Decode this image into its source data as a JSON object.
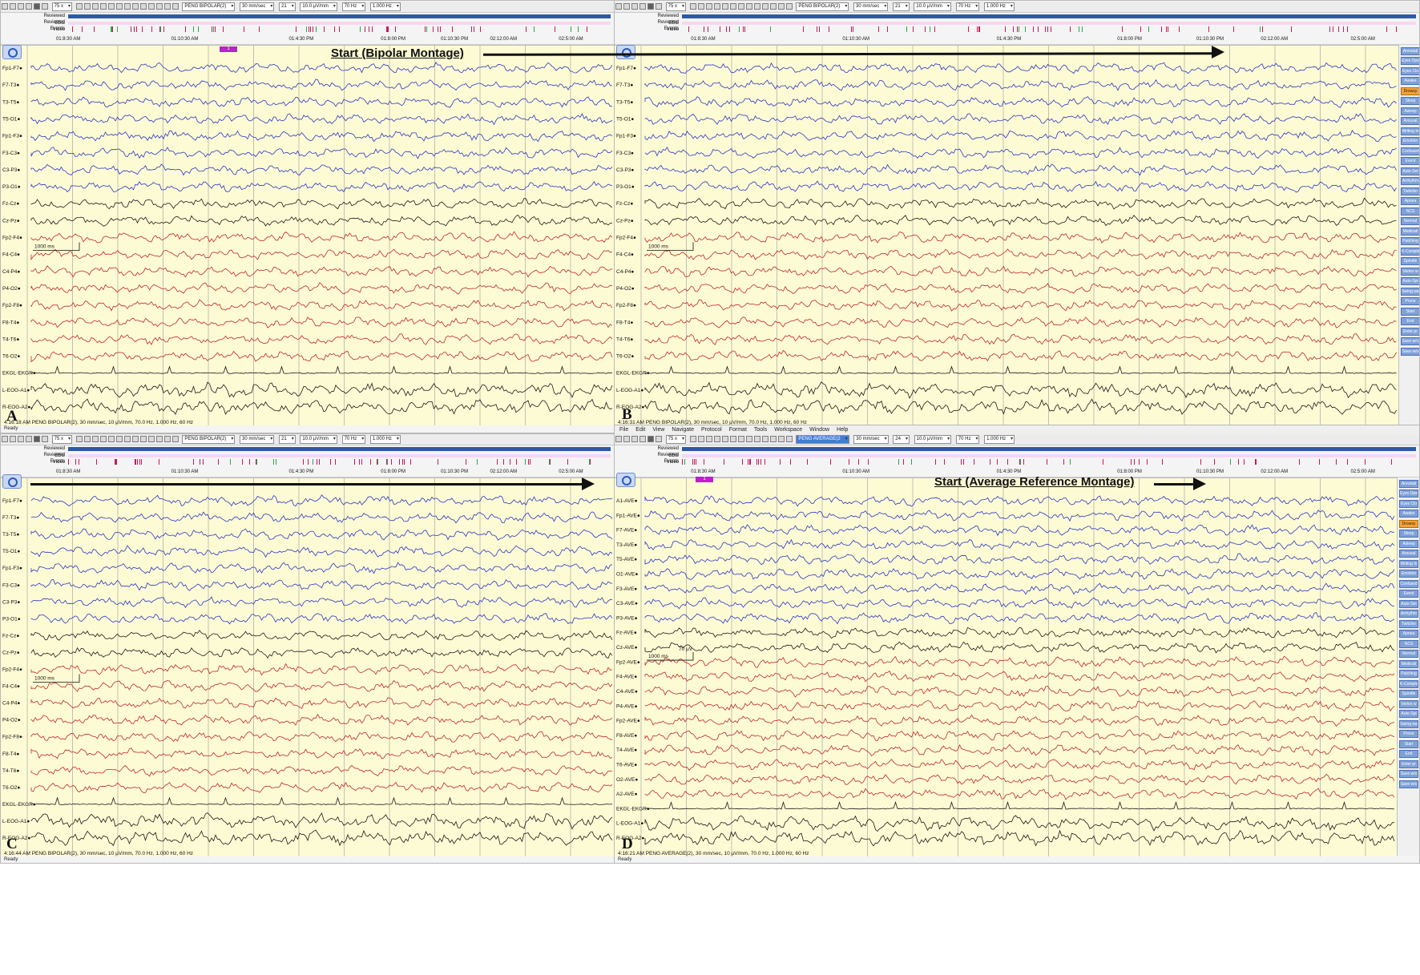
{
  "toolbar": {
    "zoom": "75 x",
    "sensitivity": "10.0 µV/mm",
    "speed": "30 mm/sec",
    "high_filter": "70 Hz",
    "low_filter": "1.000 Hz",
    "channels_bipolar": "21",
    "channels_average": "24",
    "montage_bipolar": "PENG BIPOLAR(2)",
    "montage_average": "PENG AVERAGE(2"
  },
  "menu": [
    "File",
    "Edit",
    "View",
    "Navigate",
    "Protocol",
    "Format",
    "Tools",
    "Workspace",
    "Window",
    "Help"
  ],
  "tracks": {
    "reviewed_eeg": "Reviewed EEG",
    "reviewed_video": "Reviewed Video",
    "events": "Events"
  },
  "timescale": [
    "01:8:30 AM",
    "01:10:30 AM",
    "01:4:30 PM",
    "01:8:00 PM",
    "01:10:30 PM",
    "02:12:00 AM",
    "02:5:00 AM"
  ],
  "scale_bar": {
    "time": "1000 ms",
    "amplitude": "70 µV"
  },
  "sidebar_buttons": [
    "Annotati",
    "Eyes Ope",
    "Eyes Clo",
    "Awake",
    "Drowsy",
    "Sleep",
    "Asleep",
    "Arousal",
    "Writing In",
    "Emotion",
    "Confused",
    "Event",
    "Auto-Set",
    "Arrhythm",
    "Twitchin",
    "Apnea",
    "NCS",
    "Normal",
    "Medicati",
    "Patching",
    "K-Comple",
    "Spindle",
    "Vertex w",
    "Auto-Spi",
    "Swing wa",
    "Prone",
    "Start",
    "End",
    "Enter pr",
    "Save w/o",
    "Save w/o"
  ],
  "sidebar_highlight": "Drowsy",
  "status_ready": "Ready",
  "event_flag": "1",
  "panels": [
    {
      "letter": "A",
      "info": "4:16:18 AM PENG BIPOLAR(2), 30 mm/sec, 10 µV/mm, 70.0 Hz, 1.000 Hz, 60 Hz",
      "channels": [
        "Fp1-F7",
        "F7-T3",
        "T3-T5",
        "T5-O1",
        "Fp1-F3",
        "F3-C3",
        "C3-P3",
        "P3-O1",
        "Fz-Cz",
        "Cz-Pz",
        "Fp2-F4",
        "F4-C4",
        "C4-P4",
        "P4-O2",
        "Fp2-F8",
        "F8-T4",
        "T4-T6",
        "T6-O2",
        "EKGL-EKGR",
        "L-EOG-A1",
        "R-EOG-A2"
      ],
      "annotation": ""
    },
    {
      "letter": "B",
      "info": "4:16:31 AM PENG BIPOLAR(2), 30 mm/sec, 10 µV/mm, 70.0 Hz, 1.000 Hz, 60 Hz",
      "channels": [
        "Fp1-F7",
        "F7-T3",
        "T3-T5",
        "T5-O1",
        "Fp1-F3",
        "F3-C3",
        "C3-P3",
        "P3-O1",
        "Fz-Cz",
        "Cz-Pz",
        "Fp2-F4",
        "F4-C4",
        "C4-P4",
        "P4-O2",
        "Fp2-F8",
        "F8-T4",
        "T4-T6",
        "T6-O2",
        "EKGL-EKGR",
        "L-EOG-A1",
        "R-EOG-A2"
      ],
      "annotation": "Start  (Bipolar Montage)"
    },
    {
      "letter": "C",
      "info": "4:16:44 AM PENG BIPOLAR(2), 30 mm/sec, 10 µV/mm, 70.0 Hz, 1.000 Hz, 60 Hz",
      "channels": [
        "Fp1-F7",
        "F7-T3",
        "T3-T5",
        "T5-O1",
        "Fp1-F3",
        "F3-C3",
        "C3-P3",
        "P3-O1",
        "Fz-Cz",
        "Cz-Pz",
        "Fp2-F4",
        "F4-C4",
        "C4-P4",
        "P4-O2",
        "Fp2-F8",
        "F8-T4",
        "T4-T6",
        "T6-O2",
        "EKGL-EKGR",
        "L-EOG-A1",
        "R-EOG-A2"
      ],
      "annotation": ""
    },
    {
      "letter": "D",
      "info": "4:16:21 AM PENG AVERAGE(2), 30 mm/sec, 10 µV/mm, 70.0 Hz, 1.000 Hz, 60 Hz",
      "channels": [
        "A1-AVE",
        "Fp1-AVE",
        "F7-AVE",
        "T3-AVE",
        "T5-AVE",
        "O1-AVE",
        "F3-AVE",
        "C3-AVE",
        "P3-AVE",
        "Fz-AVE",
        "Cz-AVE",
        "Fp2-AVE",
        "F4-AVE",
        "C4-AVE",
        "P4-AVE",
        "Fp2-AVE",
        "F8-AVE",
        "T4-AVE",
        "T6-AVE",
        "O2-AVE",
        "A2-AVE",
        "EKGL-EKGR",
        "L-EOG-A1",
        "R-EOG-A2"
      ],
      "annotation": "Start (Average Reference Montage)"
    }
  ],
  "trace_colors": {
    "left": "#2b35c8",
    "midline": "#1a1a1a",
    "right": "#c0282c",
    "aux": "#1a1a1a"
  }
}
